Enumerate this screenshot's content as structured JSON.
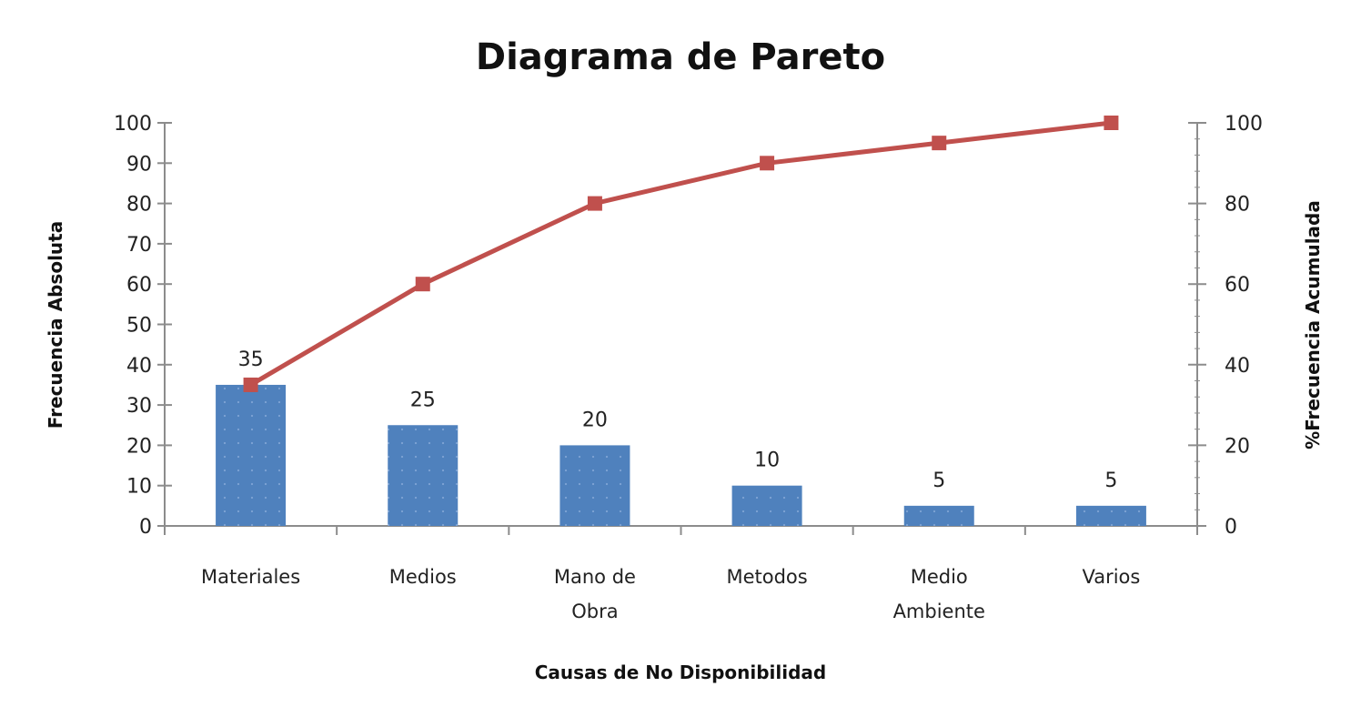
{
  "chart_data": {
    "type": "bar",
    "title": "Diagrama de Pareto",
    "xlabel": "Causas de No Disponibilidad",
    "ylabel": "Frecuencia Absoluta",
    "y2label": "%Frecuencia Acumulada",
    "categories": [
      "Materiales",
      "Medios",
      "Mano de Obra",
      "Metodos",
      "Medio Ambiente",
      "Varios"
    ],
    "category_lines": [
      [
        "Materiales"
      ],
      [
        "Medios"
      ],
      [
        "Mano de",
        "Obra"
      ],
      [
        "Metodos"
      ],
      [
        "Medio",
        "Ambiente"
      ],
      [
        "Varios"
      ]
    ],
    "series": [
      {
        "name": "Frecuencia Absoluta",
        "type": "bar",
        "axis": "left",
        "color": "#4F81BD",
        "values": [
          35,
          25,
          20,
          10,
          5,
          5
        ],
        "data_labels": [
          "35",
          "25",
          "20",
          "10",
          "5",
          "5"
        ]
      },
      {
        "name": "%Frecuencia Acumulada",
        "type": "line",
        "axis": "right",
        "color": "#C0504D",
        "marker": "square",
        "values": [
          35,
          60,
          80,
          90,
          95,
          100
        ]
      }
    ],
    "ylim": [
      0,
      100
    ],
    "y2lim": [
      0,
      100
    ],
    "yticks": [
      0,
      10,
      20,
      30,
      40,
      50,
      60,
      70,
      80,
      90,
      100
    ],
    "y2ticks": [
      0,
      20,
      40,
      60,
      80,
      100
    ],
    "grid": false,
    "legend": "none"
  },
  "colors": {
    "bar": "#4F81BD",
    "line": "#C0504D",
    "axis": "#8c8c8c"
  }
}
